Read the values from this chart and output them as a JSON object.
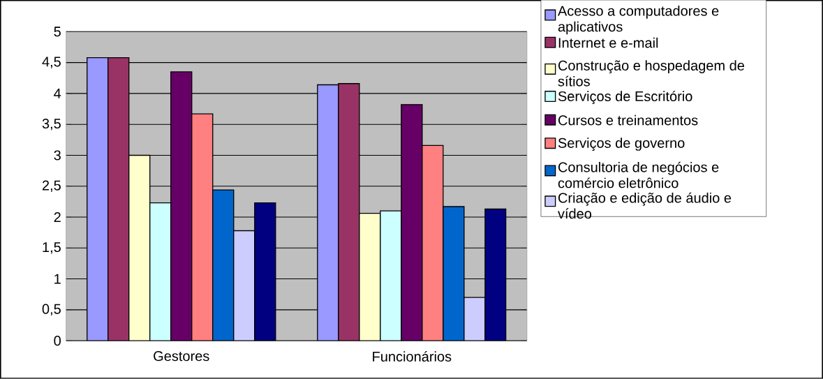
{
  "chart_data": {
    "type": "bar",
    "categories": [
      "Gestores",
      "Funcionários"
    ],
    "series": [
      {
        "name": "Acesso a computadores e aplicativos",
        "color": "#9999ff",
        "values": [
          4.58,
          4.14
        ]
      },
      {
        "name": "Internet e e-mail",
        "color": "#993366",
        "values": [
          4.58,
          4.16
        ]
      },
      {
        "name": "Construção e hospedagem de sítios",
        "color": "#ffffcc",
        "values": [
          3.0,
          2.06
        ]
      },
      {
        "name": "Serviços de Escritório",
        "color": "#ccffff",
        "values": [
          2.23,
          2.1
        ]
      },
      {
        "name": "Cursos e treinamentos",
        "color": "#660066",
        "values": [
          4.35,
          3.82
        ]
      },
      {
        "name": "Serviços de governo",
        "color": "#ff8080",
        "values": [
          3.67,
          3.16
        ]
      },
      {
        "name": "Consultoria de negócios e comércio eletrônico",
        "color": "#0066cc",
        "values": [
          2.44,
          2.17
        ]
      },
      {
        "name": "Criação e edição de áudio e vídeo",
        "color": "#ccccff",
        "values": [
          1.78,
          0.7
        ]
      },
      {
        "color": "#000080",
        "values": [
          2.23,
          2.13
        ]
      }
    ],
    "ylim": [
      0,
      5
    ],
    "yticks": [
      0,
      {
        "value": 0.5,
        "label": "0,5"
      },
      1,
      {
        "value": 1.5,
        "label": "1,5"
      },
      2,
      {
        "value": 2.5,
        "label": "2,5"
      },
      3,
      {
        "value": 3.5,
        "label": "3,5"
      },
      4,
      {
        "value": 4.5,
        "label": "4,5"
      },
      5
    ],
    "grid": "y",
    "legend": "right"
  }
}
